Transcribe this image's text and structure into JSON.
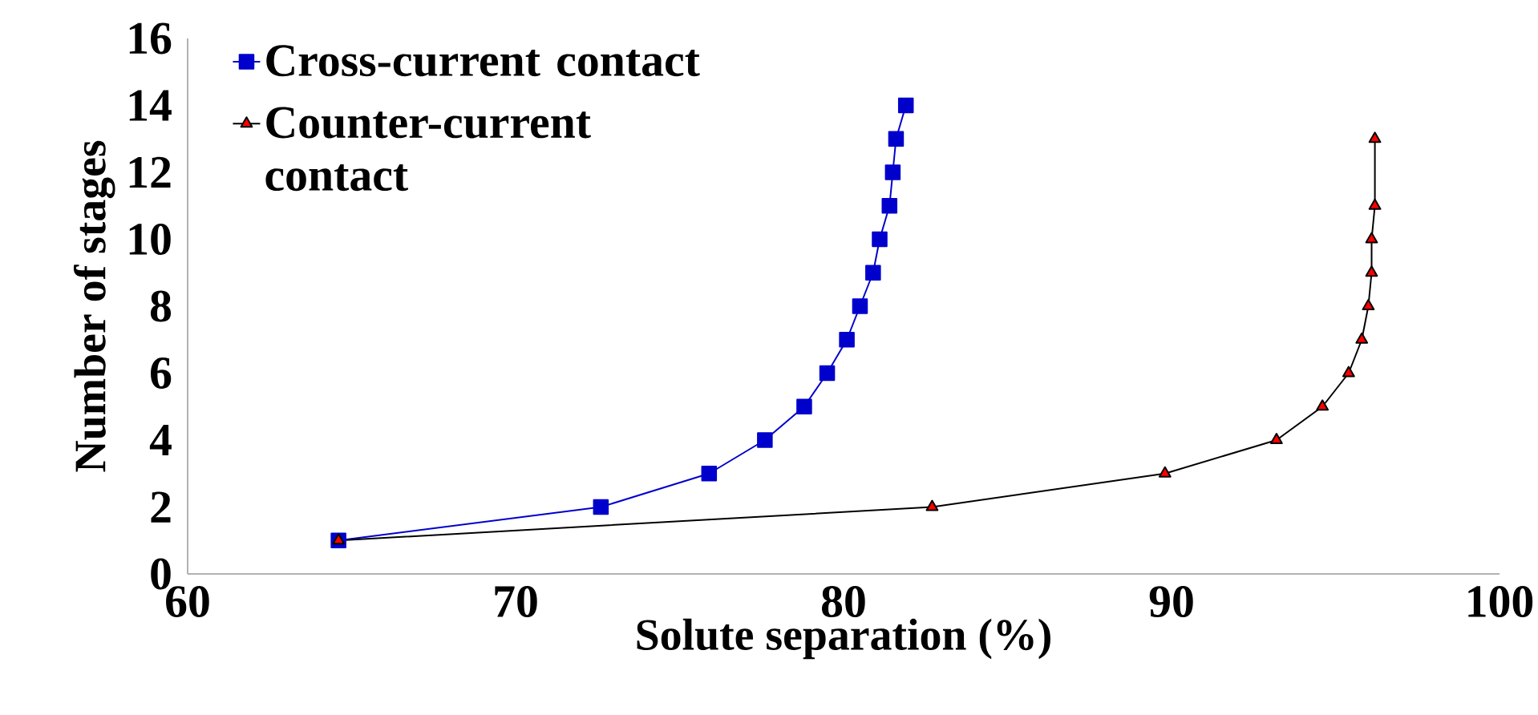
{
  "chart_data": {
    "type": "line",
    "xlabel": "Solute separation (%)",
    "ylabel": "Number of stages",
    "xlim": [
      60,
      100
    ],
    "xticks": [
      60,
      70,
      80,
      90,
      100
    ],
    "ylim": [
      0,
      16
    ],
    "yticks": [
      0,
      2,
      4,
      6,
      8,
      10,
      12,
      14,
      16
    ],
    "grid": false,
    "legend": "top left",
    "line_style": "solid",
    "series": [
      {
        "name": "Cross-current contact",
        "color": "#0000cc",
        "marker": "square",
        "x": [
          64.6,
          72.6,
          75.9,
          77.6,
          78.8,
          79.5,
          80.1,
          80.5,
          80.9,
          81.1,
          81.4,
          81.5,
          81.6,
          81.9
        ],
        "values": [
          1,
          2,
          3,
          4,
          5,
          6,
          7,
          8,
          9,
          10,
          11,
          12,
          13,
          14
        ]
      },
      {
        "name": "Counter-current contact",
        "color": "#000000",
        "marker": "triangle",
        "x": [
          64.6,
          82.7,
          89.8,
          93.2,
          94.6,
          95.4,
          95.8,
          96.0,
          96.1,
          96.1,
          96.2,
          96.2
        ],
        "values": [
          1,
          2,
          3,
          4,
          5,
          6,
          7,
          8,
          9,
          10,
          11,
          13
        ]
      }
    ]
  }
}
